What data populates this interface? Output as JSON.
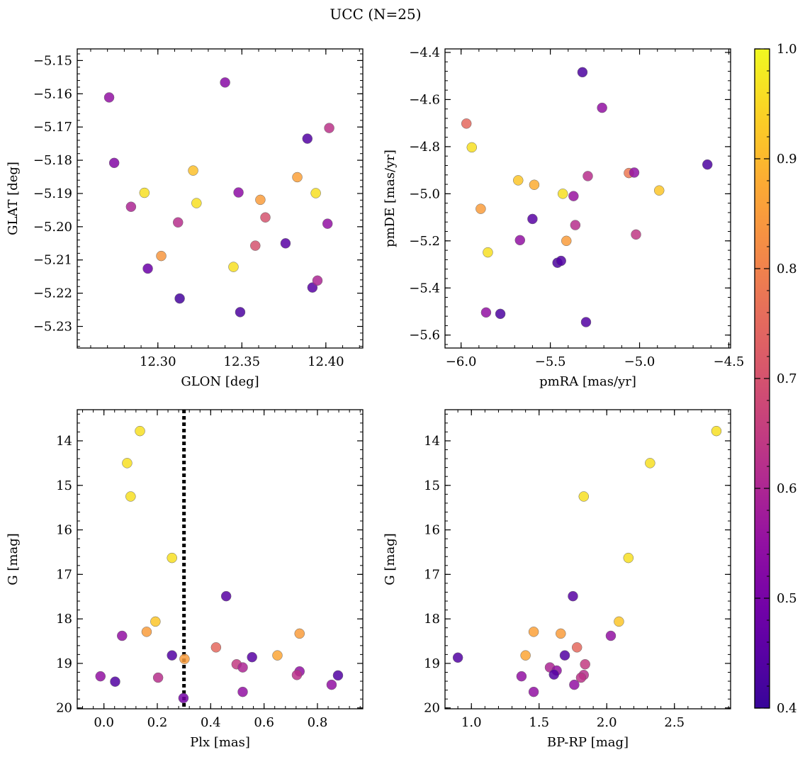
{
  "figure": {
    "title": "UCC (N=25)"
  },
  "colorbar": {
    "vmin": 0.4,
    "vmax": 1.0,
    "ticks": [
      0.4,
      0.5,
      0.6,
      0.7,
      0.8,
      0.9,
      1.0
    ],
    "tick_labels": [
      "0.4",
      "0.5",
      "0.6",
      "0.7",
      "0.8",
      "0.9",
      "1.0"
    ],
    "colormap": "plasma"
  },
  "chart_data": [
    {
      "type": "scatter",
      "id": "glon-glat",
      "xlabel": "GLON [deg]",
      "ylabel": "GLAT [deg]",
      "xlim": [
        12.252,
        12.422
      ],
      "ylim": [
        -5.2365,
        -5.1465
      ],
      "x_ticks": [
        12.3,
        12.35,
        12.4
      ],
      "x_tick_labels": [
        "12.30",
        "12.35",
        "12.40"
      ],
      "y_ticks": [
        -5.15,
        -5.16,
        -5.17,
        -5.18,
        -5.19,
        -5.2,
        -5.21,
        -5.22,
        -5.23
      ],
      "y_tick_labels": [
        "−5.15",
        "−5.16",
        "−5.17",
        "−5.18",
        "−5.19",
        "−5.20",
        "−5.21",
        "−5.22",
        "−5.23"
      ],
      "points": [
        {
          "x": 12.271,
          "y": -5.1611,
          "c": 0.55
        },
        {
          "x": 12.274,
          "y": -5.1808,
          "c": 0.52
        },
        {
          "x": 12.284,
          "y": -5.194,
          "c": 0.6
        },
        {
          "x": 12.292,
          "y": -5.1898,
          "c": 0.96
        },
        {
          "x": 12.294,
          "y": -5.2126,
          "c": 0.48
        },
        {
          "x": 12.302,
          "y": -5.2088,
          "c": 0.84
        },
        {
          "x": 12.312,
          "y": -5.1987,
          "c": 0.62
        },
        {
          "x": 12.313,
          "y": -5.2216,
          "c": 0.42
        },
        {
          "x": 12.321,
          "y": -5.1831,
          "c": 0.91
        },
        {
          "x": 12.323,
          "y": -5.1929,
          "c": 0.96
        },
        {
          "x": 12.34,
          "y": -5.1566,
          "c": 0.53
        },
        {
          "x": 12.345,
          "y": -5.2121,
          "c": 0.96
        },
        {
          "x": 12.348,
          "y": -5.1897,
          "c": 0.54
        },
        {
          "x": 12.349,
          "y": -5.2257,
          "c": 0.43
        },
        {
          "x": 12.358,
          "y": -5.2057,
          "c": 0.7
        },
        {
          "x": 12.361,
          "y": -5.1919,
          "c": 0.85
        },
        {
          "x": 12.364,
          "y": -5.1972,
          "c": 0.7
        },
        {
          "x": 12.376,
          "y": -5.205,
          "c": 0.45
        },
        {
          "x": 12.383,
          "y": -5.1851,
          "c": 0.86
        },
        {
          "x": 12.389,
          "y": -5.1735,
          "c": 0.44
        },
        {
          "x": 12.392,
          "y": -5.2183,
          "c": 0.45
        },
        {
          "x": 12.394,
          "y": -5.1899,
          "c": 0.96
        },
        {
          "x": 12.395,
          "y": -5.2162,
          "c": 0.6
        },
        {
          "x": 12.401,
          "y": -5.1991,
          "c": 0.55
        },
        {
          "x": 12.402,
          "y": -5.1703,
          "c": 0.63
        }
      ]
    },
    {
      "type": "scatter",
      "id": "pmra-pmde",
      "xlabel": "pmRA [mas/yr]",
      "ylabel": "pmDE [mas/yr]",
      "xlim": [
        -6.09,
        -4.49
      ],
      "ylim": [
        -5.655,
        -4.385
      ],
      "x_ticks": [
        -6.0,
        -5.5,
        -5.0,
        -4.5
      ],
      "x_tick_labels": [
        "−6.0",
        "−5.5",
        "−5.0",
        "−4.5"
      ],
      "y_ticks": [
        -4.4,
        -4.6,
        -4.8,
        -5.0,
        -5.2,
        -5.4,
        -5.6
      ],
      "y_tick_labels": [
        "−4.4",
        "−4.6",
        "−4.8",
        "−5.0",
        "−5.2",
        "−5.4",
        "−5.6"
      ],
      "points": [
        {
          "x": -5.97,
          "y": -4.702,
          "c": 0.75
        },
        {
          "x": -5.94,
          "y": -4.803,
          "c": 0.96
        },
        {
          "x": -5.89,
          "y": -5.064,
          "c": 0.85
        },
        {
          "x": -5.86,
          "y": -5.504,
          "c": 0.55
        },
        {
          "x": -5.85,
          "y": -5.249,
          "c": 0.96
        },
        {
          "x": -5.78,
          "y": -5.51,
          "c": 0.43
        },
        {
          "x": -5.68,
          "y": -4.943,
          "c": 0.92
        },
        {
          "x": -5.67,
          "y": -5.197,
          "c": 0.55
        },
        {
          "x": -5.59,
          "y": -4.962,
          "c": 0.88
        },
        {
          "x": -5.6,
          "y": -5.107,
          "c": 0.45
        },
        {
          "x": -5.46,
          "y": -5.293,
          "c": 0.43
        },
        {
          "x": -5.44,
          "y": -5.285,
          "c": 0.44
        },
        {
          "x": -5.43,
          "y": -5.0,
          "c": 0.96
        },
        {
          "x": -5.41,
          "y": -5.2,
          "c": 0.85
        },
        {
          "x": -5.37,
          "y": -5.01,
          "c": 0.56
        },
        {
          "x": -5.36,
          "y": -5.133,
          "c": 0.62
        },
        {
          "x": -5.32,
          "y": -4.484,
          "c": 0.43
        },
        {
          "x": -5.3,
          "y": -5.545,
          "c": 0.44
        },
        {
          "x": -5.29,
          "y": -4.925,
          "c": 0.62
        },
        {
          "x": -5.21,
          "y": -4.635,
          "c": 0.55
        },
        {
          "x": -5.06,
          "y": -4.912,
          "c": 0.78
        },
        {
          "x": -5.03,
          "y": -4.91,
          "c": 0.55
        },
        {
          "x": -5.02,
          "y": -5.173,
          "c": 0.64
        },
        {
          "x": -4.89,
          "y": -4.986,
          "c": 0.92
        },
        {
          "x": -4.62,
          "y": -4.876,
          "c": 0.43
        }
      ]
    },
    {
      "type": "scatter",
      "id": "plx-g",
      "xlabel": "Plx [mas]",
      "ylabel": "G [mag]",
      "xlim": [
        -0.1,
        0.97
      ],
      "ylim": [
        20.02,
        13.3
      ],
      "y_inverted": true,
      "x_ticks": [
        0.0,
        0.2,
        0.4,
        0.6,
        0.8
      ],
      "x_tick_labels": [
        "0.0",
        "0.2",
        "0.4",
        "0.6",
        "0.8"
      ],
      "y_ticks": [
        14,
        15,
        16,
        17,
        18,
        19,
        20
      ],
      "y_tick_labels": [
        "14",
        "15",
        "16",
        "17",
        "18",
        "19",
        "20"
      ],
      "vline": {
        "x": 0.3,
        "style": "dotted"
      },
      "points": [
        {
          "x": 0.135,
          "y": 13.78,
          "c": 0.96
        },
        {
          "x": 0.087,
          "y": 14.5,
          "c": 0.96
        },
        {
          "x": 0.1,
          "y": 15.25,
          "c": 0.96
        },
        {
          "x": 0.255,
          "y": 16.63,
          "c": 0.96
        },
        {
          "x": 0.458,
          "y": 17.49,
          "c": 0.45
        },
        {
          "x": 0.193,
          "y": 18.06,
          "c": 0.92
        },
        {
          "x": 0.16,
          "y": 18.29,
          "c": 0.85
        },
        {
          "x": 0.068,
          "y": 18.38,
          "c": 0.55
        },
        {
          "x": 0.733,
          "y": 18.33,
          "c": 0.85
        },
        {
          "x": 0.42,
          "y": 18.64,
          "c": 0.75
        },
        {
          "x": 0.255,
          "y": 18.82,
          "c": 0.44
        },
        {
          "x": 0.302,
          "y": 18.9,
          "c": 0.85
        },
        {
          "x": 0.555,
          "y": 18.86,
          "c": 0.45
        },
        {
          "x": 0.65,
          "y": 18.82,
          "c": 0.87
        },
        {
          "x": 0.497,
          "y": 19.02,
          "c": 0.65
        },
        {
          "x": 0.52,
          "y": 19.09,
          "c": 0.6
        },
        {
          "x": 0.733,
          "y": 19.18,
          "c": 0.55
        },
        {
          "x": 0.723,
          "y": 19.26,
          "c": 0.63
        },
        {
          "x": 0.877,
          "y": 19.27,
          "c": 0.44
        },
        {
          "x": -0.013,
          "y": 19.29,
          "c": 0.55
        },
        {
          "x": 0.203,
          "y": 19.32,
          "c": 0.62
        },
        {
          "x": 0.042,
          "y": 19.41,
          "c": 0.44
        },
        {
          "x": 0.853,
          "y": 19.48,
          "c": 0.55
        },
        {
          "x": 0.52,
          "y": 19.64,
          "c": 0.55
        },
        {
          "x": 0.298,
          "y": 19.78,
          "c": 0.5
        }
      ]
    },
    {
      "type": "scatter",
      "id": "bprp-g",
      "xlabel": "BP-RP [mag]",
      "ylabel": "G [mag]",
      "xlim": [
        0.805,
        2.915
      ],
      "ylim": [
        20.02,
        13.3
      ],
      "y_inverted": true,
      "x_ticks": [
        1.0,
        1.5,
        2.0,
        2.5
      ],
      "x_tick_labels": [
        "1.0",
        "1.5",
        "2.0",
        "2.5"
      ],
      "y_ticks": [
        14,
        15,
        16,
        17,
        18,
        19,
        20
      ],
      "y_tick_labels": [
        "14",
        "15",
        "16",
        "17",
        "18",
        "19",
        "20"
      ],
      "points": [
        {
          "x": 2.81,
          "y": 13.78,
          "c": 0.96
        },
        {
          "x": 2.32,
          "y": 14.5,
          "c": 0.96
        },
        {
          "x": 1.83,
          "y": 15.25,
          "c": 0.96
        },
        {
          "x": 2.16,
          "y": 16.63,
          "c": 0.96
        },
        {
          "x": 1.75,
          "y": 17.49,
          "c": 0.45
        },
        {
          "x": 2.09,
          "y": 18.06,
          "c": 0.92
        },
        {
          "x": 1.46,
          "y": 18.29,
          "c": 0.86
        },
        {
          "x": 1.66,
          "y": 18.33,
          "c": 0.85
        },
        {
          "x": 2.03,
          "y": 18.38,
          "c": 0.55
        },
        {
          "x": 1.78,
          "y": 18.64,
          "c": 0.75
        },
        {
          "x": 1.4,
          "y": 18.82,
          "c": 0.87
        },
        {
          "x": 1.69,
          "y": 18.82,
          "c": 0.44
        },
        {
          "x": 0.9,
          "y": 18.87,
          "c": 0.44
        },
        {
          "x": 1.84,
          "y": 19.02,
          "c": 0.65
        },
        {
          "x": 1.58,
          "y": 19.09,
          "c": 0.6
        },
        {
          "x": 1.63,
          "y": 19.16,
          "c": 0.55
        },
        {
          "x": 1.61,
          "y": 19.25,
          "c": 0.44
        },
        {
          "x": 1.83,
          "y": 19.26,
          "c": 0.62
        },
        {
          "x": 1.37,
          "y": 19.29,
          "c": 0.55
        },
        {
          "x": 1.81,
          "y": 19.32,
          "c": 0.63
        },
        {
          "x": 1.76,
          "y": 19.48,
          "c": 0.55
        },
        {
          "x": 1.46,
          "y": 19.64,
          "c": 0.55
        }
      ]
    }
  ]
}
